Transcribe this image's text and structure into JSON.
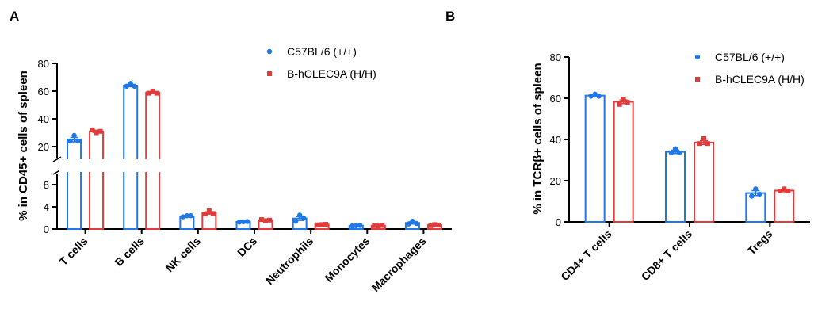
{
  "panels": {
    "a": {
      "letter": "A"
    },
    "b": {
      "letter": "B"
    }
  },
  "colors": {
    "wildtype": "#1f77e8",
    "humanized": "#e03c3c"
  },
  "chart_data": [
    {
      "type": "bar",
      "panel": "A",
      "ylabel": "% in CD45+ cells of spleen",
      "xlabel": "",
      "y_axis_broken": true,
      "ylim_lower": [
        0,
        10
      ],
      "yticks_lower": [
        0,
        4,
        8
      ],
      "ylim_upper": [
        12,
        80
      ],
      "yticks_upper": [
        20,
        40,
        60,
        80
      ],
      "categories": [
        "T cells",
        "B cells",
        "NK cells",
        "DCs",
        "Neutrophils",
        "Monocytes",
        "Macrophages"
      ],
      "legend_position": "top-right",
      "series": [
        {
          "name": "C57BL/6 (+/+)",
          "color": "#1f77e8",
          "marker": "circle",
          "values": [
            25.0,
            64.0,
            2.3,
            1.3,
            1.9,
            0.6,
            1.1
          ],
          "sem": [
            1.6,
            0.8,
            0.15,
            0.05,
            0.35,
            0.05,
            0.2
          ],
          "points": [
            [
              28.0,
              24.0,
              24.0
            ],
            [
              65.5,
              63.5,
              63.5
            ],
            [
              2.4,
              2.2,
              2.4
            ],
            [
              1.3,
              1.25,
              1.35
            ],
            [
              2.5,
              1.4,
              2.0
            ],
            [
              0.6,
              0.55,
              0.65
            ],
            [
              1.4,
              0.9,
              1.0
            ]
          ]
        },
        {
          "name": "B-hCLEC9A (H/H)",
          "color": "#e03c3c",
          "marker": "square",
          "values": [
            31.0,
            59.0,
            2.9,
            1.6,
            0.8,
            0.6,
            0.7
          ],
          "sem": [
            0.8,
            0.6,
            0.2,
            0.1,
            0.05,
            0.05,
            0.1
          ],
          "points": [
            [
              30.0,
              32.0,
              31.0
            ],
            [
              60.0,
              58.5,
              58.5
            ],
            [
              3.3,
              2.7,
              2.8
            ],
            [
              1.5,
              1.7,
              1.6
            ],
            [
              0.8,
              0.75,
              0.85
            ],
            [
              0.55,
              0.6,
              0.65
            ],
            [
              0.8,
              0.6,
              0.7
            ]
          ]
        }
      ]
    },
    {
      "type": "bar",
      "panel": "B",
      "ylabel": "% in TCRβ+ cells of spleen",
      "xlabel": "",
      "ylim": [
        0,
        80
      ],
      "yticks": [
        0,
        20,
        40,
        60,
        80
      ],
      "categories": [
        "CD4+ T cells",
        "CD8+ T cells",
        "Tregs"
      ],
      "legend_position": "top-right",
      "series": [
        {
          "name": "C57BL/6 (+/+)",
          "color": "#1f77e8",
          "marker": "circle",
          "values": [
            61.3,
            34.0,
            14.0
          ],
          "sem": [
            0.5,
            0.8,
            1.2
          ],
          "points": [
            [
              62.0,
              61.0,
              61.0
            ],
            [
              35.5,
              33.5,
              33.5
            ],
            [
              16.0,
              12.5,
              13.5
            ]
          ]
        },
        {
          "name": "B-hCLEC9A (H/H)",
          "color": "#e03c3c",
          "marker": "square",
          "values": [
            58.3,
            38.5,
            15.2
          ],
          "sem": [
            0.9,
            0.9,
            0.5
          ],
          "points": [
            [
              59.5,
              57.0,
              58.0
            ],
            [
              40.5,
              38.0,
              38.0
            ],
            [
              16.0,
              15.0,
              15.0
            ]
          ]
        }
      ]
    }
  ]
}
